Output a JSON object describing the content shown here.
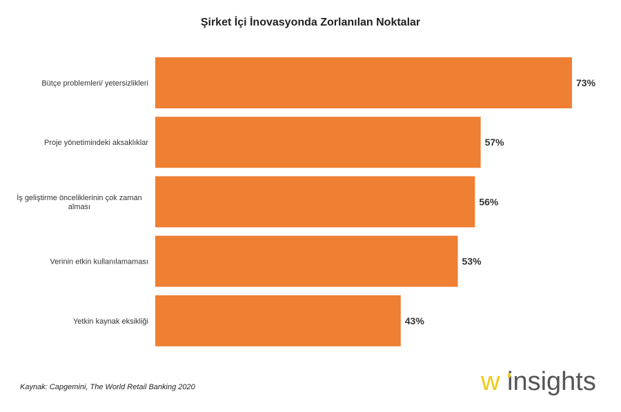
{
  "chart_data": {
    "type": "bar",
    "orientation": "horizontal",
    "title": "Şirket İçi İnovasyonda Zorlanılan Noktalar",
    "categories": [
      "Bütçe problemleri/ yetersizlikleri",
      "Proje yönetimindeki aksaklıklar",
      "İş geliştirme önceliklerinin çok zaman alması",
      "Verinin etkin kullanılamaması",
      "Yetkin kaynak eksikliği"
    ],
    "values": [
      73,
      57,
      56,
      53,
      43
    ],
    "data_labels": [
      "73%",
      "57%",
      "56%",
      "53%",
      "43%"
    ],
    "unit": "%",
    "xlim": [
      0,
      100
    ],
    "grid": false,
    "legend": "none",
    "bar_color": "#EE7F33"
  },
  "footer": {
    "source": "Kaynak: Capgemini,  The World Retail Banking 2020",
    "logo_text": "w insights",
    "logo_color": "#F2C913"
  }
}
